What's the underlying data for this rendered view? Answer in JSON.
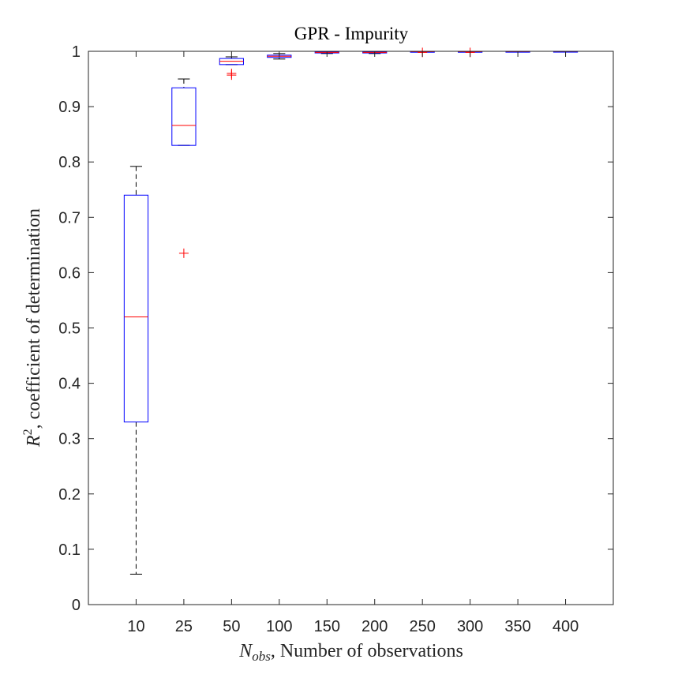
{
  "chart_data": {
    "type": "boxplot",
    "title": "GPR - Impurity",
    "xlabel": {
      "symbol": "N",
      "subscript": "obs",
      "text": ", Number of observations"
    },
    "ylabel": {
      "symbol": "R",
      "superscript": "2",
      "text": ", coefficient of determination"
    },
    "ylim": [
      0,
      1
    ],
    "yticks": [
      0,
      0.1,
      0.2,
      0.3,
      0.4,
      0.5,
      0.6,
      0.7,
      0.8,
      0.9,
      1
    ],
    "ytick_labels": [
      "0",
      "0.1",
      "0.2",
      "0.3",
      "0.4",
      "0.5",
      "0.6",
      "0.7",
      "0.8",
      "0.9",
      "1"
    ],
    "categories": [
      "10",
      "25",
      "50",
      "100",
      "150",
      "200",
      "250",
      "300",
      "350",
      "400"
    ],
    "boxes": [
      {
        "category": "10",
        "lower_whisker": 0.055,
        "q1": 0.33,
        "median": 0.52,
        "q3": 0.74,
        "upper_whisker": 0.792,
        "outliers": []
      },
      {
        "category": "25",
        "lower_whisker": 0.83,
        "q1": 0.83,
        "median": 0.866,
        "q3": 0.934,
        "upper_whisker": 0.95,
        "outliers": [
          0.635
        ]
      },
      {
        "category": "50",
        "lower_whisker": 0.976,
        "q1": 0.976,
        "median": 0.982,
        "q3": 0.987,
        "upper_whisker": 0.99,
        "outliers": [
          0.96,
          0.957
        ]
      },
      {
        "category": "100",
        "lower_whisker": 0.986,
        "q1": 0.989,
        "median": 0.991,
        "q3": 0.993,
        "upper_whisker": 0.996,
        "outliers": []
      },
      {
        "category": "150",
        "lower_whisker": 0.996,
        "q1": 0.997,
        "median": 0.998,
        "q3": 0.999,
        "upper_whisker": 0.9995,
        "outliers": []
      },
      {
        "category": "200",
        "lower_whisker": 0.996,
        "q1": 0.997,
        "median": 0.998,
        "q3": 0.999,
        "upper_whisker": 0.9995,
        "outliers": []
      },
      {
        "category": "250",
        "lower_whisker": 0.999,
        "q1": 0.9993,
        "median": 0.9995,
        "q3": 0.9997,
        "upper_whisker": 0.9999,
        "outliers": [
          0.998
        ]
      },
      {
        "category": "300",
        "lower_whisker": 0.999,
        "q1": 0.9993,
        "median": 0.9995,
        "q3": 0.9997,
        "upper_whisker": 0.9999,
        "outliers": [
          0.998
        ]
      },
      {
        "category": "350",
        "lower_whisker": 0.9995,
        "q1": 0.9996,
        "median": 0.9997,
        "q3": 0.9998,
        "upper_whisker": 0.9999,
        "outliers": []
      },
      {
        "category": "400",
        "lower_whisker": 0.9996,
        "q1": 0.9997,
        "median": 0.9998,
        "q3": 0.9999,
        "upper_whisker": 1.0,
        "outliers": []
      }
    ],
    "colors": {
      "box": "#0000ff",
      "median": "#ff0000",
      "whisker": "#000000",
      "outlier": "#ff0000",
      "axes": "#262626"
    },
    "grid": false,
    "legend": "none"
  }
}
